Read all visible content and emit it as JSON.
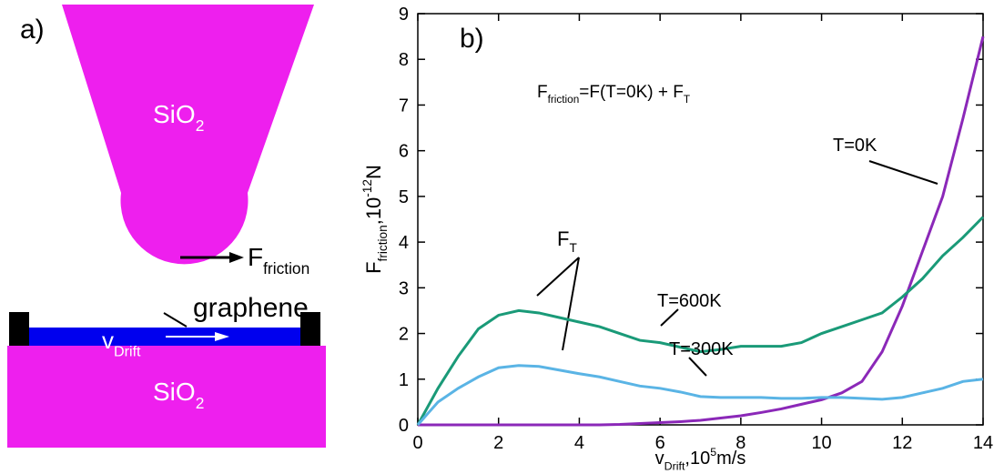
{
  "diagram": {
    "label": "a)",
    "tip": {
      "parts": [
        {
          "text": "SiO"
        },
        {
          "text": "2",
          "pos": "sub"
        }
      ]
    },
    "force": {
      "parts": [
        {
          "text": "F"
        },
        {
          "text": "friction",
          "pos": "sub"
        }
      ]
    },
    "layer": "graphene",
    "drift": {
      "parts": [
        {
          "text": "v"
        },
        {
          "text": "Drift",
          "pos": "sub"
        }
      ]
    },
    "substrate": {
      "parts": [
        {
          "text": "SiO"
        },
        {
          "text": "2",
          "pos": "sub"
        }
      ]
    }
  },
  "chart_data": {
    "type": "line",
    "panel_label": "b)",
    "equation": {
      "parts": [
        {
          "text": "F"
        },
        {
          "text": "friction",
          "pos": "sub"
        },
        {
          "text": "=F(T=0K) + F"
        },
        {
          "text": "T",
          "pos": "sub"
        }
      ]
    },
    "thermal_label": {
      "parts": [
        {
          "text": "F"
        },
        {
          "text": "T",
          "pos": "sub"
        }
      ]
    },
    "x_label": {
      "parts": [
        {
          "text": "v"
        },
        {
          "text": "Drift",
          "pos": "sub"
        },
        {
          "text": ",10"
        },
        {
          "text": "5",
          "pos": "sup"
        },
        {
          "text": "m/s"
        }
      ]
    },
    "y_label": {
      "parts": [
        {
          "text": "F"
        },
        {
          "text": "friction",
          "pos": "sub"
        },
        {
          "text": ",10"
        },
        {
          "text": "-12",
          "pos": "sup"
        },
        {
          "text": "N"
        }
      ]
    },
    "x": [
      0,
      0.25,
      0.5,
      1,
      1.5,
      2,
      2.5,
      3,
      3.5,
      4,
      4.5,
      5,
      5.5,
      6,
      6.5,
      7,
      7.5,
      8,
      8.5,
      9,
      9.5,
      10,
      10.5,
      11,
      11.5,
      12,
      12.5,
      13,
      13.5,
      14
    ],
    "series": [
      {
        "name": "T=0K",
        "color": "#8b28b8",
        "values": [
          0,
          0,
          0,
          0,
          0,
          0,
          0,
          0,
          0,
          0,
          0,
          0.01,
          0.03,
          0.05,
          0.07,
          0.1,
          0.15,
          0.2,
          0.27,
          0.35,
          0.45,
          0.55,
          0.7,
          0.95,
          1.6,
          2.6,
          3.8,
          5.0,
          6.7,
          8.5
        ]
      },
      {
        "name": "T=600K",
        "color": "#1a9a78",
        "values": [
          0,
          0.4,
          0.8,
          1.5,
          2.1,
          2.4,
          2.5,
          2.45,
          2.35,
          2.25,
          2.15,
          2.0,
          1.85,
          1.8,
          1.7,
          1.6,
          1.65,
          1.72,
          1.72,
          1.72,
          1.8,
          2.0,
          2.15,
          2.3,
          2.45,
          2.8,
          3.2,
          3.7,
          4.1,
          4.55
        ]
      },
      {
        "name": "T=300K",
        "color": "#5ab4e5",
        "values": [
          0,
          0.25,
          0.5,
          0.8,
          1.05,
          1.25,
          1.3,
          1.28,
          1.2,
          1.12,
          1.05,
          0.95,
          0.85,
          0.8,
          0.72,
          0.62,
          0.6,
          0.6,
          0.6,
          0.58,
          0.58,
          0.6,
          0.6,
          0.58,
          0.56,
          0.6,
          0.7,
          0.8,
          0.95,
          1.0
        ]
      }
    ],
    "xlim": [
      0,
      14
    ],
    "xticks": [
      0,
      2,
      4,
      6,
      8,
      10,
      12,
      14
    ],
    "ylim": [
      0,
      9
    ],
    "yticks": [
      0,
      1,
      2,
      3,
      4,
      5,
      6,
      7,
      8,
      9
    ]
  }
}
